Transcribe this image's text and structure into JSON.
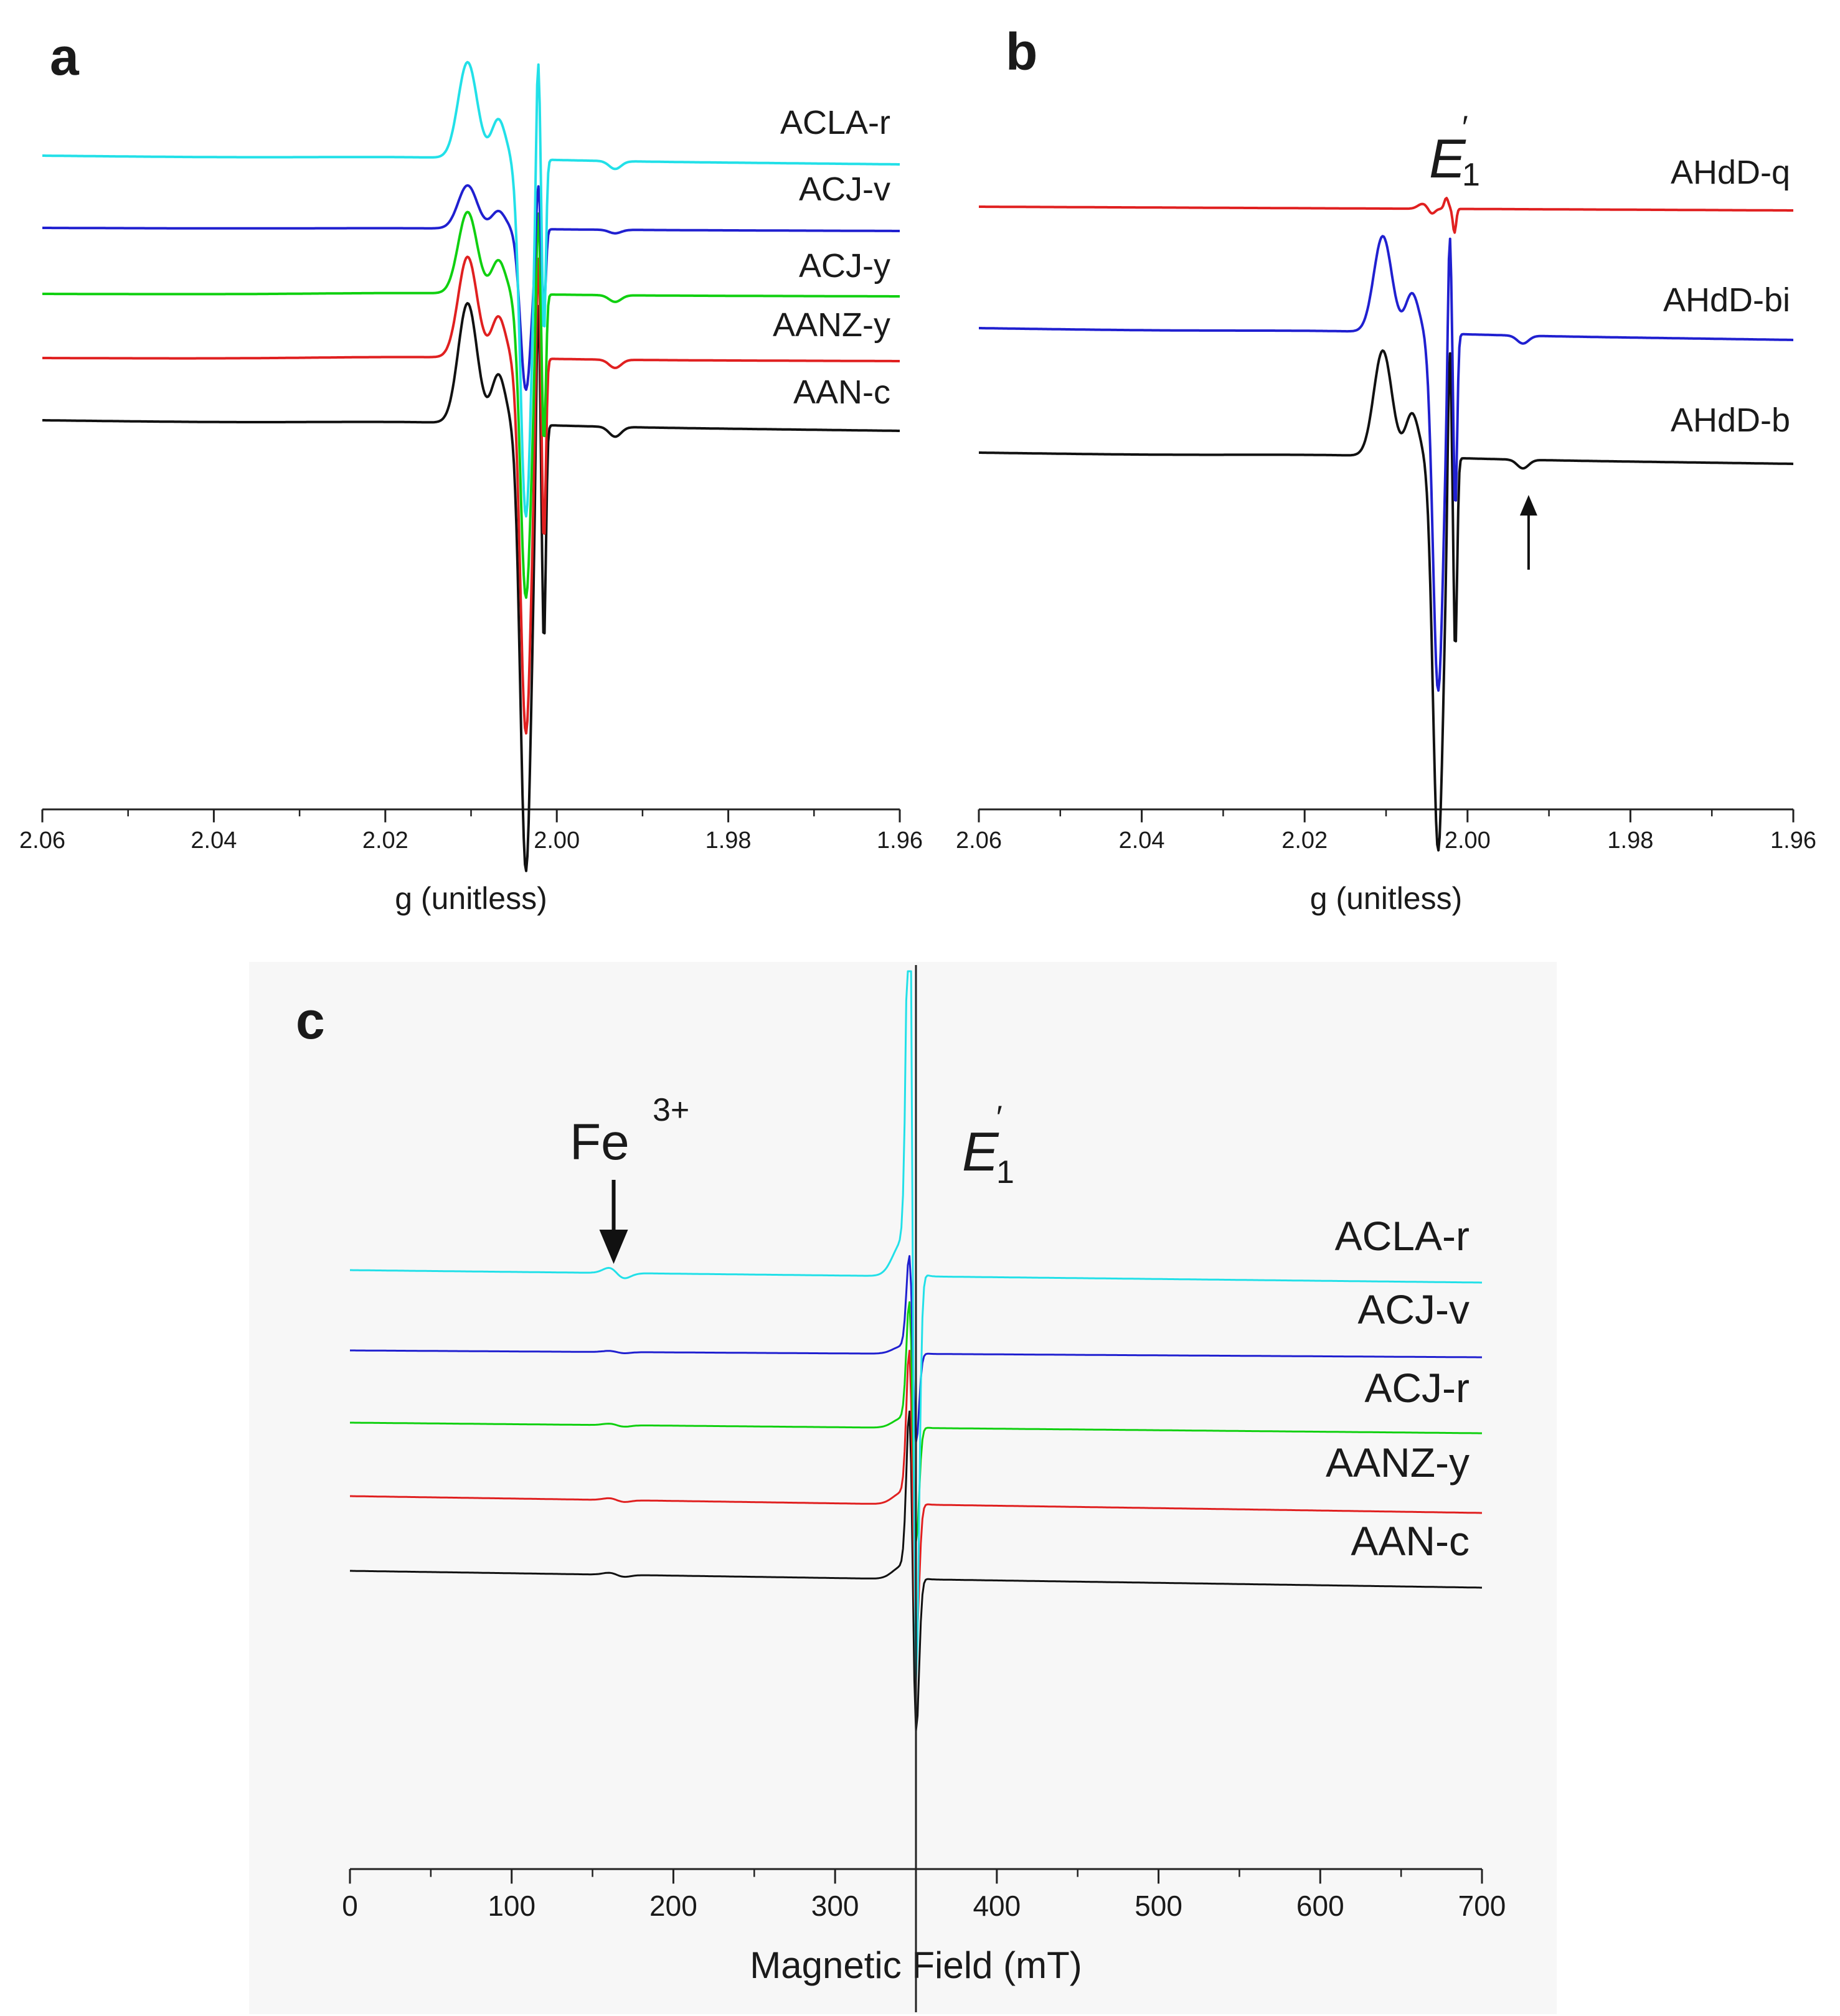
{
  "chart_data": [
    {
      "panel": "a",
      "type": "line",
      "title": "",
      "xlabel": "g (unitless)",
      "ylabel": "",
      "xlim": [
        2.06,
        1.96
      ],
      "x_ticks": [
        "2.06",
        "2.04",
        "2.02",
        "2.00",
        "1.98",
        "1.96"
      ],
      "grid": false,
      "series": [
        {
          "name": "ACLA-r",
          "color": "#22e0e8",
          "amp": 1.0
        },
        {
          "name": "ACJ-v",
          "color": "#2020d0",
          "amp": 0.45
        },
        {
          "name": "ACJ-y",
          "color": "#10d010",
          "amp": 0.85
        },
        {
          "name": "AANZ-y",
          "color": "#e02020",
          "amp": 1.05
        },
        {
          "name": "AAN-c",
          "color": "#111111",
          "amp": 1.25
        }
      ]
    },
    {
      "panel": "b",
      "type": "line",
      "title": "",
      "xlabel": "g (unitless)",
      "ylabel": "",
      "xlim": [
        2.06,
        1.96
      ],
      "x_ticks": [
        "2.06",
        "2.04",
        "2.02",
        "2.00",
        "1.98",
        "1.96"
      ],
      "grid": false,
      "annotation": {
        "symbol": "E",
        "sup": "′",
        "sub": "1"
      },
      "series": [
        {
          "name": "AHdD-q",
          "color": "#e02020",
          "amp": 0.25
        },
        {
          "name": "AHdD-bi",
          "color": "#2020d0",
          "amp": 1.0
        },
        {
          "name": "AHdD-b",
          "color": "#111111",
          "amp": 1.1
        }
      ]
    },
    {
      "panel": "c",
      "type": "line",
      "title": "",
      "xlabel": "Magnetic Field (mT)",
      "ylabel": "",
      "xlim": [
        0,
        700
      ],
      "x_ticks": [
        "0",
        "100",
        "200",
        "300",
        "400",
        "500",
        "600",
        "700"
      ],
      "grid": false,
      "annotation_fe": {
        "text": "Fe",
        "sup": "3+",
        "x": 165
      },
      "annotation_e": {
        "symbol": "E",
        "sup": "′",
        "sub": "1",
        "x": 350
      },
      "series": [
        {
          "name": "ACLA-r",
          "color": "#22e0e8",
          "amp": 1.0
        },
        {
          "name": "ACJ-v",
          "color": "#2020d0",
          "amp": 0.35
        },
        {
          "name": "ACJ-r",
          "color": "#10d010",
          "amp": 0.45
        },
        {
          "name": "AANZ-y",
          "color": "#e02020",
          "amp": 0.55
        },
        {
          "name": "AAN-c",
          "color": "#111111",
          "amp": 0.6
        }
      ]
    }
  ]
}
